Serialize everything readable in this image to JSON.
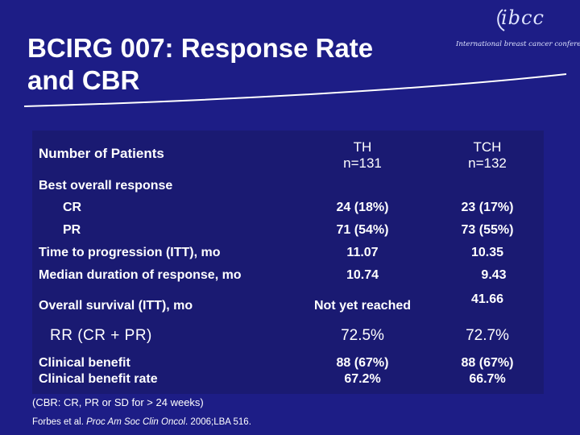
{
  "title": {
    "line1": "BCIRG 007: Response Rate",
    "line2": "and CBR"
  },
  "logo": {
    "brand": "ibcc",
    "tagline": "International breast cancer conference"
  },
  "table": {
    "header": {
      "label": "Number of Patients",
      "col1_name": "TH",
      "col1_n": "n=131",
      "col2_name": "TCH",
      "col2_n": "n=132"
    },
    "best_overall_response": "Best overall response",
    "rows": {
      "cr": {
        "label": "CR",
        "th": "24 (18%)",
        "tch": "23 (17%)"
      },
      "pr": {
        "label": "PR",
        "th": "71 (54%)",
        "tch": "73 (55%)"
      },
      "ttp": {
        "label": "Time to progression (ITT), mo",
        "th": "11.07",
        "tch": "10.35"
      },
      "mdr": {
        "label": "Median duration of response, mo",
        "th": "10.74",
        "tch": "9.43"
      },
      "os": {
        "label": "Overall survival (ITT), mo",
        "th": "Not yet reached",
        "tch": "41.66"
      },
      "rr": {
        "label": "RR (CR + PR)",
        "th": "72.5%",
        "tch": "72.7%"
      },
      "cb": {
        "label1": "Clinical benefit",
        "label2": "Clinical benefit rate",
        "th1": "88 (67%)",
        "th2": "67.2%",
        "tch1": "88 (67%)",
        "tch2": "66.7%"
      }
    }
  },
  "footnote": "(CBR: CR, PR or SD for > 24 weeks)",
  "reference": {
    "authors": "Forbes et al. ",
    "journal": "Proc Am Soc Clin Oncol",
    "details": ". 2006;LBA 516."
  },
  "colors": {
    "background": "#1d1d86",
    "table_background": "#1a1a72",
    "text": "#ffffff",
    "accent": "#dfe4ff"
  }
}
